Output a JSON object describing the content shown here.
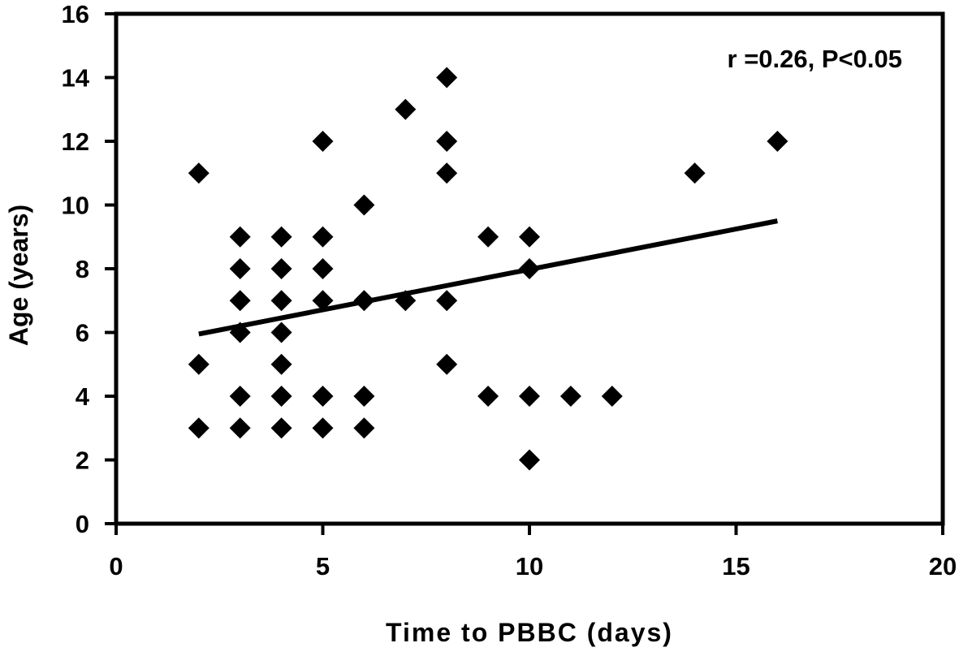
{
  "chart_data": {
    "type": "scatter",
    "title": "",
    "xlabel": "Time to PBBC (days)",
    "ylabel": "Age (years)",
    "xlim": [
      0,
      20
    ],
    "ylim": [
      0,
      16
    ],
    "xticks": [
      0,
      5,
      10,
      15,
      20
    ],
    "yticks": [
      0,
      2,
      4,
      6,
      8,
      10,
      12,
      14,
      16
    ],
    "grid": false,
    "legend": "none",
    "annotation": "r =0.26, P<0.05",
    "marker": "diamond",
    "marker_color": "#000000",
    "points": [
      {
        "x": 2,
        "y": 11
      },
      {
        "x": 2,
        "y": 5
      },
      {
        "x": 2,
        "y": 3
      },
      {
        "x": 3,
        "y": 9
      },
      {
        "x": 3,
        "y": 8
      },
      {
        "x": 3,
        "y": 7
      },
      {
        "x": 3,
        "y": 6
      },
      {
        "x": 3,
        "y": 4
      },
      {
        "x": 3,
        "y": 3
      },
      {
        "x": 4,
        "y": 9
      },
      {
        "x": 4,
        "y": 8
      },
      {
        "x": 4,
        "y": 7
      },
      {
        "x": 4,
        "y": 6
      },
      {
        "x": 4,
        "y": 5
      },
      {
        "x": 4,
        "y": 4
      },
      {
        "x": 4,
        "y": 3
      },
      {
        "x": 5,
        "y": 12
      },
      {
        "x": 5,
        "y": 9
      },
      {
        "x": 5,
        "y": 8
      },
      {
        "x": 5,
        "y": 7
      },
      {
        "x": 5,
        "y": 4
      },
      {
        "x": 5,
        "y": 3
      },
      {
        "x": 6,
        "y": 10
      },
      {
        "x": 6,
        "y": 7
      },
      {
        "x": 6,
        "y": 4
      },
      {
        "x": 6,
        "y": 3
      },
      {
        "x": 7,
        "y": 13
      },
      {
        "x": 7,
        "y": 7
      },
      {
        "x": 8,
        "y": 14
      },
      {
        "x": 8,
        "y": 12
      },
      {
        "x": 8,
        "y": 11
      },
      {
        "x": 8,
        "y": 7
      },
      {
        "x": 8,
        "y": 5
      },
      {
        "x": 9,
        "y": 9
      },
      {
        "x": 9,
        "y": 4
      },
      {
        "x": 10,
        "y": 9
      },
      {
        "x": 10,
        "y": 8
      },
      {
        "x": 10,
        "y": 4
      },
      {
        "x": 10,
        "y": 2
      },
      {
        "x": 11,
        "y": 4
      },
      {
        "x": 12,
        "y": 4
      },
      {
        "x": 14,
        "y": 11
      },
      {
        "x": 16,
        "y": 12
      }
    ],
    "trendline": {
      "x": [
        2,
        16
      ],
      "y": [
        5.95,
        9.5
      ]
    }
  }
}
